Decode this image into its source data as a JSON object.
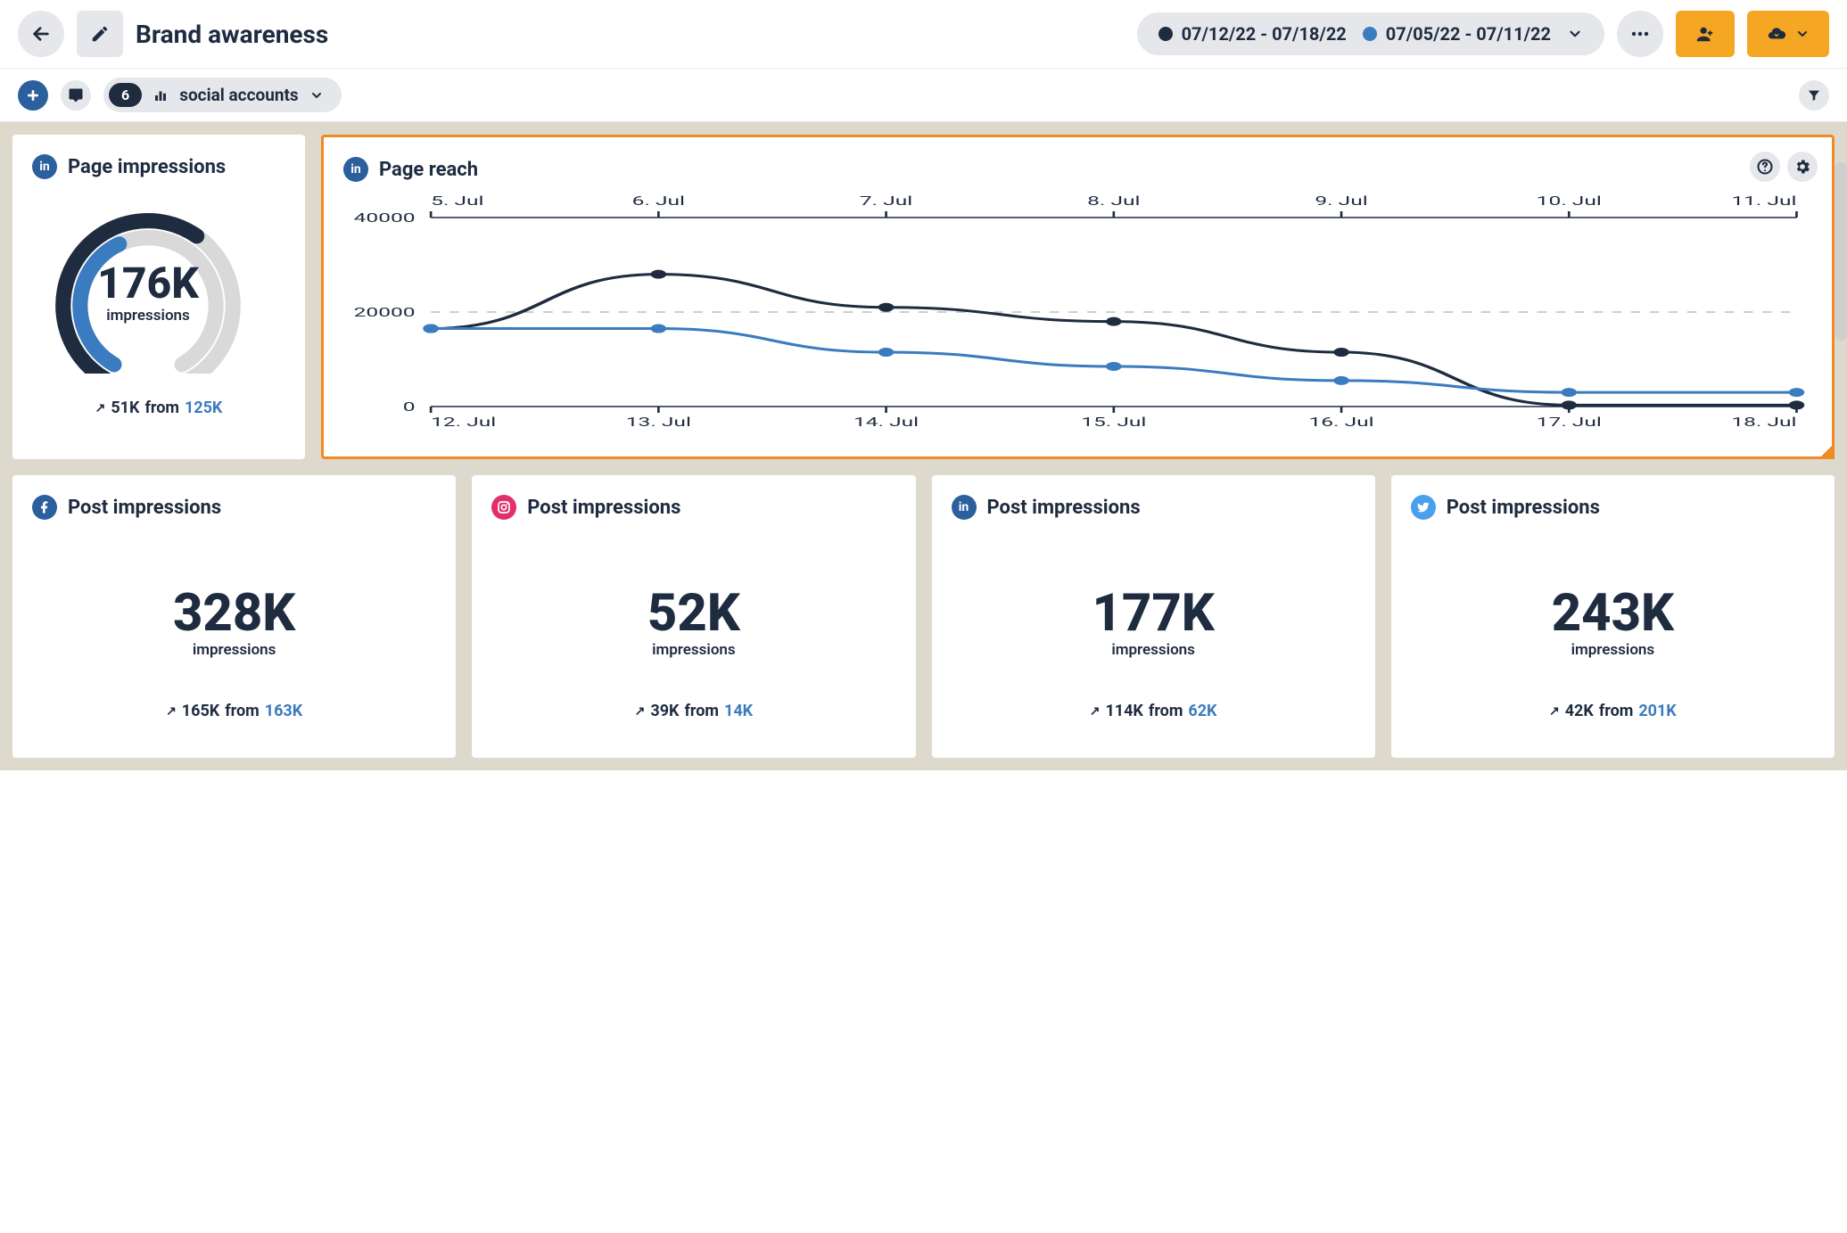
{
  "colors": {
    "series_primary": "#1f2c40",
    "series_compare": "#3b7bbf",
    "card_bg": "#ffffff",
    "canvas_bg": "#ded9cd",
    "accent_orange": "#f5a623",
    "select_orange": "#f08a24",
    "pill_grey": "#e5e7eb",
    "linkedin": "#2b5f9e",
    "facebook": "#2b5f9e",
    "instagram": "#e1306c",
    "twitter": "#4aa0eb",
    "grid_line": "#bdbdbd"
  },
  "header": {
    "title": "Brand awareness",
    "date_primary": "07/12/22 - 07/18/22",
    "date_compare": "07/05/22 - 07/11/22"
  },
  "subbar": {
    "accounts_count": "6",
    "accounts_label": "social accounts"
  },
  "gauge_card": {
    "network": "linkedin",
    "title": "Page impressions",
    "value": "176K",
    "unit": "impressions",
    "delta": "51K",
    "from_word": "from",
    "from_value": "125K",
    "gauge": {
      "outer_start": 210,
      "outer_end": 35,
      "outer_color": "#1f2c40",
      "inner_start": 210,
      "inner_end": 335,
      "inner_color": "#3b7bbf",
      "track_color": "#d9d9d9",
      "stroke_width": 18
    }
  },
  "reach_card": {
    "network": "linkedin",
    "title": "Page reach",
    "chart": {
      "type": "line",
      "y_ticks": [
        0,
        20000,
        40000
      ],
      "y_labels": [
        "0",
        "20000",
        "40000"
      ],
      "top_axis_labels": [
        "5. Jul",
        "6. Jul",
        "7. Jul",
        "8. Jul",
        "9. Jul",
        "10. Jul",
        "11. Jul"
      ],
      "bottom_axis_labels": [
        "12. Jul",
        "13. Jul",
        "14. Jul",
        "15. Jul",
        "16. Jul",
        "17. Jul",
        "18. Jul"
      ],
      "series": [
        {
          "name": "primary",
          "color": "#1f2c40",
          "values": [
            16500,
            28000,
            21000,
            18000,
            11500,
            300,
            300
          ]
        },
        {
          "name": "compare",
          "color": "#3b7bbf",
          "values": [
            16500,
            16500,
            11500,
            8500,
            5500,
            3000,
            3000
          ]
        }
      ],
      "marker_radius": 5,
      "line_width": 3,
      "grid_dash": "6,6",
      "background": "#ffffff",
      "ylim": [
        0,
        40000
      ]
    }
  },
  "stat_cards": [
    {
      "network": "facebook",
      "title": "Post impressions",
      "value": "328K",
      "unit": "impressions",
      "delta": "165K",
      "from_word": "from",
      "from_value": "163K"
    },
    {
      "network": "instagram",
      "title": "Post impressions",
      "value": "52K",
      "unit": "impressions",
      "delta": "39K",
      "from_word": "from",
      "from_value": "14K"
    },
    {
      "network": "linkedin",
      "title": "Post impressions",
      "value": "177K",
      "unit": "impressions",
      "delta": "114K",
      "from_word": "from",
      "from_value": "62K"
    },
    {
      "network": "twitter",
      "title": "Post impressions",
      "value": "243K",
      "unit": "impressions",
      "delta": "42K",
      "from_word": "from",
      "from_value": "201K"
    }
  ]
}
